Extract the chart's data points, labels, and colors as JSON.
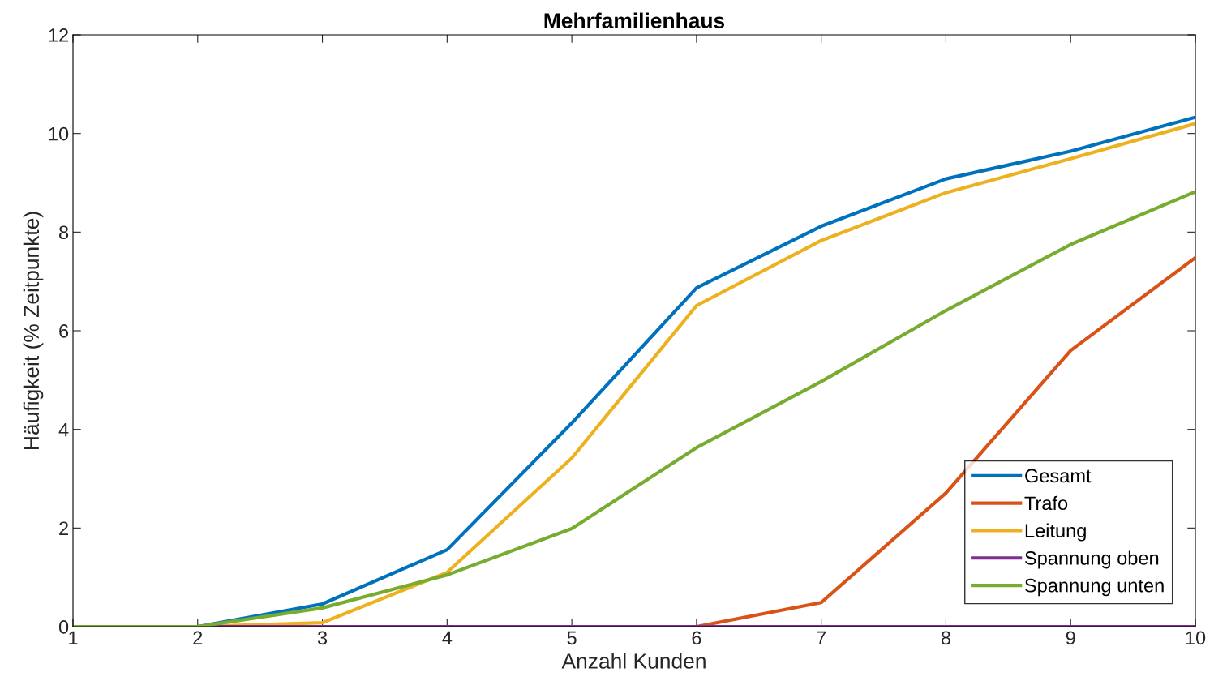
{
  "chart_data": {
    "type": "line",
    "title": "Mehrfamilienhaus",
    "xlabel": "Anzahl Kunden",
    "ylabel": "Häufigkeit (% Zeitpunkte)",
    "x": [
      1,
      2,
      3,
      4,
      5,
      6,
      7,
      8,
      9,
      10
    ],
    "series": [
      {
        "name": "Gesamt",
        "color": "#0072bd",
        "values": [
          0,
          0,
          0.46,
          1.56,
          4.13,
          6.87,
          8.12,
          9.08,
          9.64,
          10.33
        ]
      },
      {
        "name": "Trafo",
        "color": "#d95319",
        "values": [
          null,
          null,
          null,
          null,
          null,
          0,
          0.49,
          2.71,
          5.6,
          7.48
        ]
      },
      {
        "name": "Leitung",
        "color": "#edb120",
        "values": [
          0,
          0,
          0.08,
          1.1,
          3.42,
          6.51,
          7.83,
          8.8,
          9.49,
          10.2
        ]
      },
      {
        "name": "Spannung oben",
        "color": "#7e2f8e",
        "values": [
          0,
          0,
          0,
          0,
          0,
          0,
          0,
          0,
          0,
          0
        ]
      },
      {
        "name": "Spannung unten",
        "color": "#77ac30",
        "values": [
          0,
          0,
          0.38,
          1.05,
          1.99,
          3.63,
          4.97,
          6.41,
          7.75,
          8.82
        ]
      }
    ],
    "xlim": [
      1,
      10
    ],
    "xticks": [
      1,
      2,
      3,
      4,
      5,
      6,
      7,
      8,
      9,
      10
    ],
    "ylim": [
      0,
      12
    ],
    "yticks": [
      0,
      2,
      4,
      6,
      8,
      10,
      12
    ],
    "grid": false,
    "legend": "bottom right",
    "marker": "none",
    "line_style": "solid"
  }
}
